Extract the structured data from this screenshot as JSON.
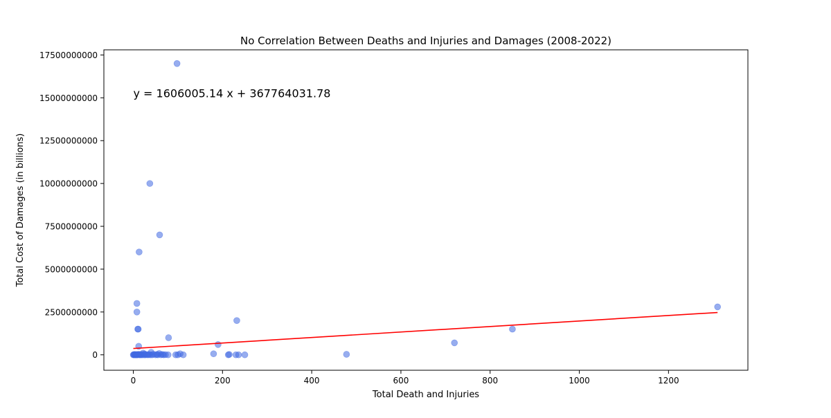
{
  "chart_data": {
    "type": "scatter",
    "title": "No Correlation Between Deaths and Injuries and Damages (2008-2022)",
    "xlabel": "Total Death and Injuries",
    "ylabel": "Total Cost of Damages (in billions)",
    "xlim": [
      -66,
      1378
    ],
    "ylim": [
      -900000000,
      17800000000
    ],
    "xticks": [
      0,
      200,
      400,
      600,
      800,
      1000,
      1200
    ],
    "yticks": [
      0,
      2500000000,
      5000000000,
      7500000000,
      10000000000,
      12500000000,
      15000000000,
      17500000000
    ],
    "xtick_labels": [
      "0",
      "200",
      "400",
      "600",
      "800",
      "1000",
      "1200"
    ],
    "ytick_labels": [
      "0",
      "2500000000",
      "5000000000",
      "7500000000",
      "10000000000",
      "12500000000",
      "15000000000",
      "17500000000"
    ],
    "grid": false,
    "point_color": "#4169e1",
    "line_color": "#ff0000",
    "regression": {
      "slope": 1606005.14,
      "intercept": 367764031.78,
      "x_range": [
        0,
        1310
      ],
      "equation_label": "y = 1606005.14 x + 367764031.78",
      "label_anchor": [
        0,
        15000000000
      ]
    },
    "points": [
      [
        98,
        17000000000
      ],
      [
        37,
        10000000000
      ],
      [
        59,
        7000000000
      ],
      [
        13,
        6000000000
      ],
      [
        8,
        3000000000
      ],
      [
        8,
        2500000000
      ],
      [
        10,
        1500000000
      ],
      [
        11,
        1500000000
      ],
      [
        232,
        2000000000
      ],
      [
        79,
        1000000000
      ],
      [
        12,
        500000000
      ],
      [
        190,
        600000000
      ],
      [
        1310,
        2800000000
      ],
      [
        850,
        1500000000
      ],
      [
        720,
        700000000
      ],
      [
        478,
        30000000
      ],
      [
        0,
        0
      ],
      [
        1,
        10000000
      ],
      [
        2,
        0
      ],
      [
        3,
        20000000
      ],
      [
        4,
        0
      ],
      [
        5,
        5000000
      ],
      [
        6,
        0
      ],
      [
        7,
        15000000
      ],
      [
        8,
        0
      ],
      [
        9,
        10000000
      ],
      [
        10,
        0
      ],
      [
        12,
        30000000
      ],
      [
        14,
        0
      ],
      [
        15,
        10000000
      ],
      [
        17,
        0
      ],
      [
        18,
        20000000
      ],
      [
        20,
        0
      ],
      [
        22,
        100000000
      ],
      [
        24,
        0
      ],
      [
        25,
        50000000
      ],
      [
        27,
        0
      ],
      [
        30,
        10000000
      ],
      [
        33,
        0
      ],
      [
        35,
        20000000
      ],
      [
        38,
        0
      ],
      [
        40,
        150000000
      ],
      [
        42,
        0
      ],
      [
        45,
        30000000
      ],
      [
        50,
        0
      ],
      [
        53,
        20000000
      ],
      [
        55,
        0
      ],
      [
        58,
        80000000
      ],
      [
        62,
        0
      ],
      [
        65,
        20000000
      ],
      [
        68,
        0
      ],
      [
        72,
        10000000
      ],
      [
        78,
        0
      ],
      [
        95,
        0
      ],
      [
        100,
        0
      ],
      [
        105,
        60000000
      ],
      [
        112,
        0
      ],
      [
        180,
        60000000
      ],
      [
        213,
        0
      ],
      [
        215,
        20000000
      ],
      [
        230,
        0
      ],
      [
        236,
        0
      ],
      [
        250,
        0
      ]
    ]
  }
}
